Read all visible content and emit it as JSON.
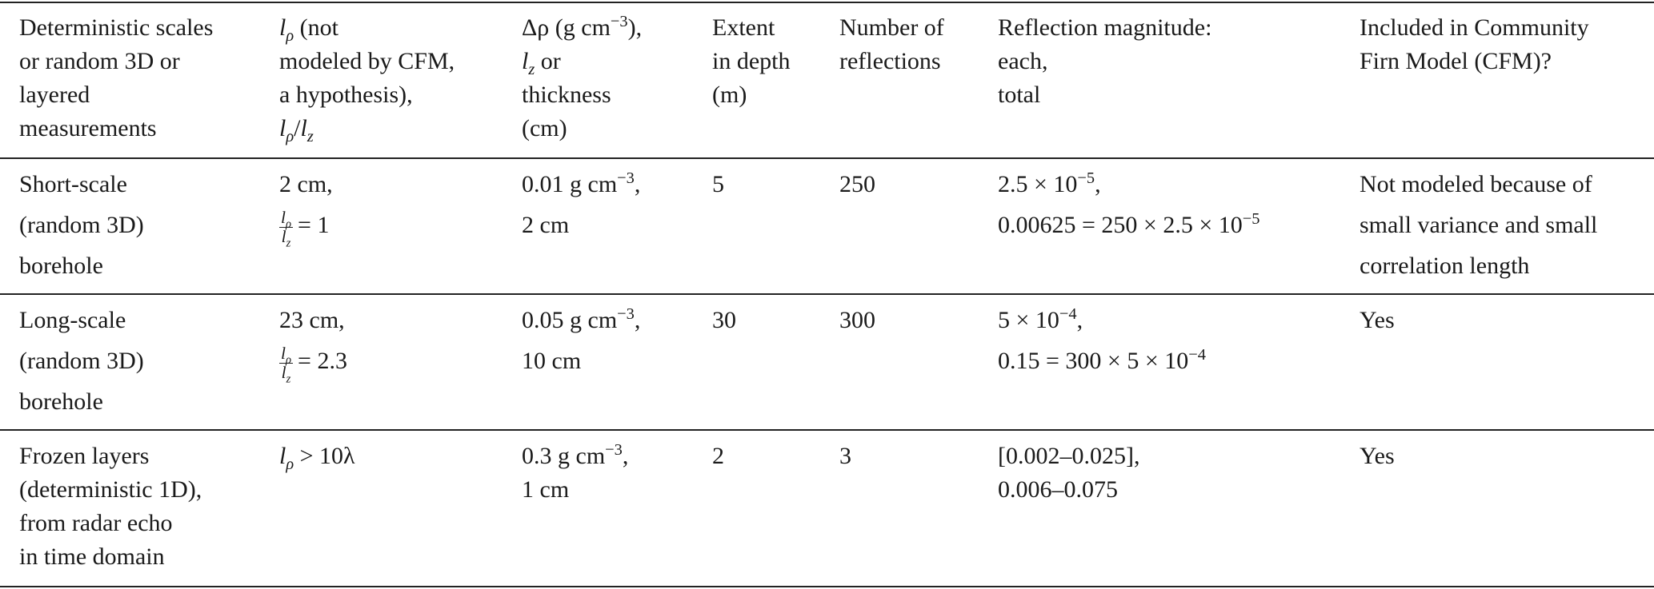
{
  "table": {
    "header": [
      [
        "Deterministic scales",
        "or random 3D or",
        "layered",
        "measurements"
      ],
      [
        [
          "l",
          "ρ",
          " (not"
        ],
        "modeled by CFM,",
        "a hypothesis),",
        [
          "l",
          "ρ",
          "/",
          "l",
          "z"
        ]
      ],
      [
        [
          "Δρ (g cm",
          "−3",
          "),"
        ],
        [
          "l",
          "z",
          " or"
        ],
        "thickness",
        "(cm)"
      ],
      [
        "Extent",
        "in depth",
        "(m)"
      ],
      [
        "Number of",
        "reflections"
      ],
      [
        "Reflection magnitude:",
        "each,",
        "total"
      ],
      [
        "Included in Community",
        "Firn Model (CFM)?"
      ]
    ],
    "rows": [
      [
        [
          "Short-scale",
          "(random 3D)",
          "borehole"
        ],
        [
          "2 cm,",
          [
            "l",
            "ρ",
            "l",
            "z",
            "= 1"
          ]
        ],
        [
          [
            "0.01 g cm",
            "−3",
            ","
          ],
          "2 cm"
        ],
        [
          "5"
        ],
        [
          "250"
        ],
        [
          [
            "2.5 × 10",
            "−5",
            ","
          ],
          [
            "0.00625 = 250 × 2.5 × 10",
            "−5"
          ]
        ],
        [
          "Not modeled because of",
          "small variance and small",
          "correlation length"
        ]
      ],
      [
        [
          "Long-scale",
          "(random 3D)",
          "borehole"
        ],
        [
          "23 cm,",
          [
            "l",
            "ρ",
            "l",
            "z",
            "= 2.3"
          ]
        ],
        [
          [
            "0.05 g cm",
            "−3",
            ","
          ],
          "10 cm"
        ],
        [
          "30"
        ],
        [
          "300"
        ],
        [
          [
            "5 × 10",
            "−4",
            ","
          ],
          [
            "0.15 = 300 × 5 × 10",
            "−4"
          ]
        ],
        [
          "Yes"
        ]
      ],
      [
        [
          "Frozen layers",
          "(deterministic 1D),",
          "from radar echo",
          "in time domain"
        ],
        [
          [
            "l",
            "ρ",
            " > 10λ"
          ]
        ],
        [
          [
            "0.3 g cm",
            "−3",
            ","
          ],
          "1 cm"
        ],
        [
          "2"
        ],
        [
          "3"
        ],
        [
          "[0.002–0.025],",
          "0.006–0.075"
        ],
        [
          "Yes"
        ]
      ]
    ]
  }
}
